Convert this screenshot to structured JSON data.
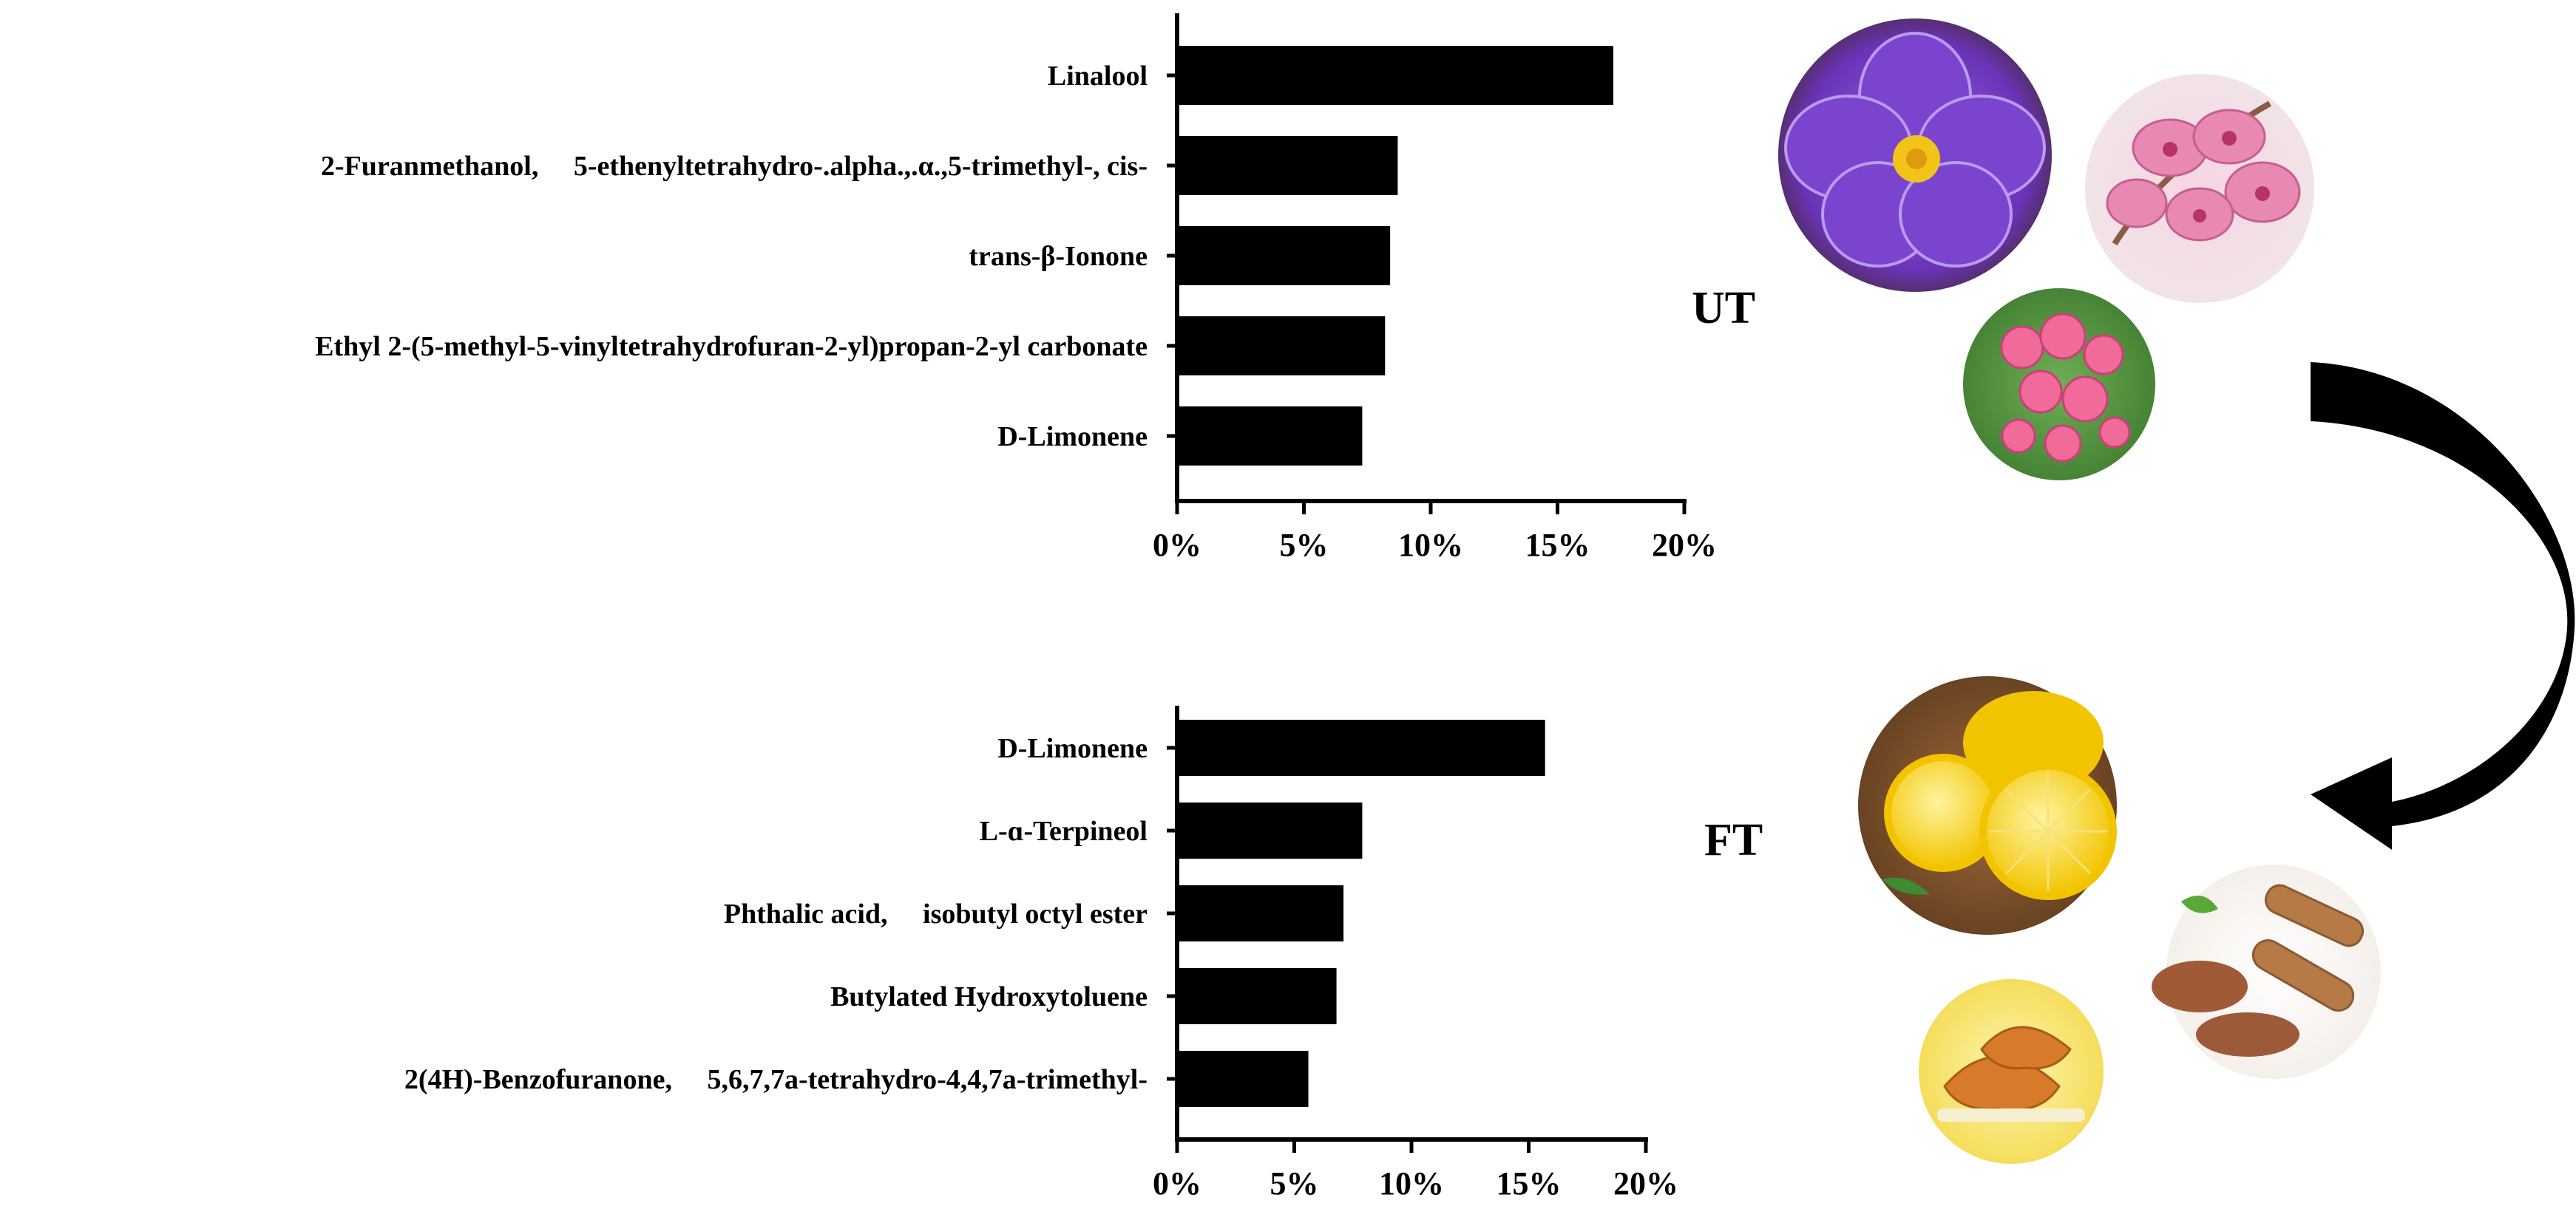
{
  "chart_data": [
    {
      "type": "bar",
      "orientation": "horizontal",
      "group": "UT",
      "categories": [
        "Linalool",
        "2-Furanmethanol,　 5-ethenyltetrahydro-.alpha.,.α.,5-trimethyl-, cis-",
        "trans-β-Ionone",
        "Ethyl 2-(5-methyl-5-vinyltetrahydrofuran-2-yl)propan-2-yl carbonate",
        "D-Limonene"
      ],
      "values": [
        17.2,
        8.7,
        8.4,
        8.2,
        7.3
      ],
      "unit": "%",
      "xlim": [
        0,
        20
      ],
      "xticks": [
        "0%",
        "5%",
        "10%",
        "15%",
        "20%"
      ],
      "bar_color": "#000000",
      "grid": false
    },
    {
      "type": "bar",
      "orientation": "horizontal",
      "group": "FT",
      "categories": [
        "D-Limonene",
        "L-ɑ-Terpineol",
        "Phthalic acid,　 isobutyl octyl ester",
        "Butylated Hydroxytoluene",
        "2(4H)-Benzofuranone,　 5,6,7,7a-tetrahydro-4,4,7a-trimethyl-"
      ],
      "values": [
        15.7,
        7.9,
        7.1,
        6.8,
        5.6
      ],
      "unit": "%",
      "xlim": [
        0,
        20
      ],
      "xticks": [
        "0%",
        "5%",
        "10%",
        "15%",
        "20%"
      ],
      "bar_color": "#000000",
      "grid": false
    }
  ],
  "groups": {
    "top_label": "UT",
    "bottom_label": "FT"
  },
  "illustrations": {
    "top": [
      "african-violet-photo",
      "pink-orchid-photo",
      "pink-rose-photo"
    ],
    "bottom": [
      "lemon-photo",
      "croissant-photo",
      "cinnamon-powder-photo"
    ],
    "arrow": "curved-arrow-down-icon"
  }
}
